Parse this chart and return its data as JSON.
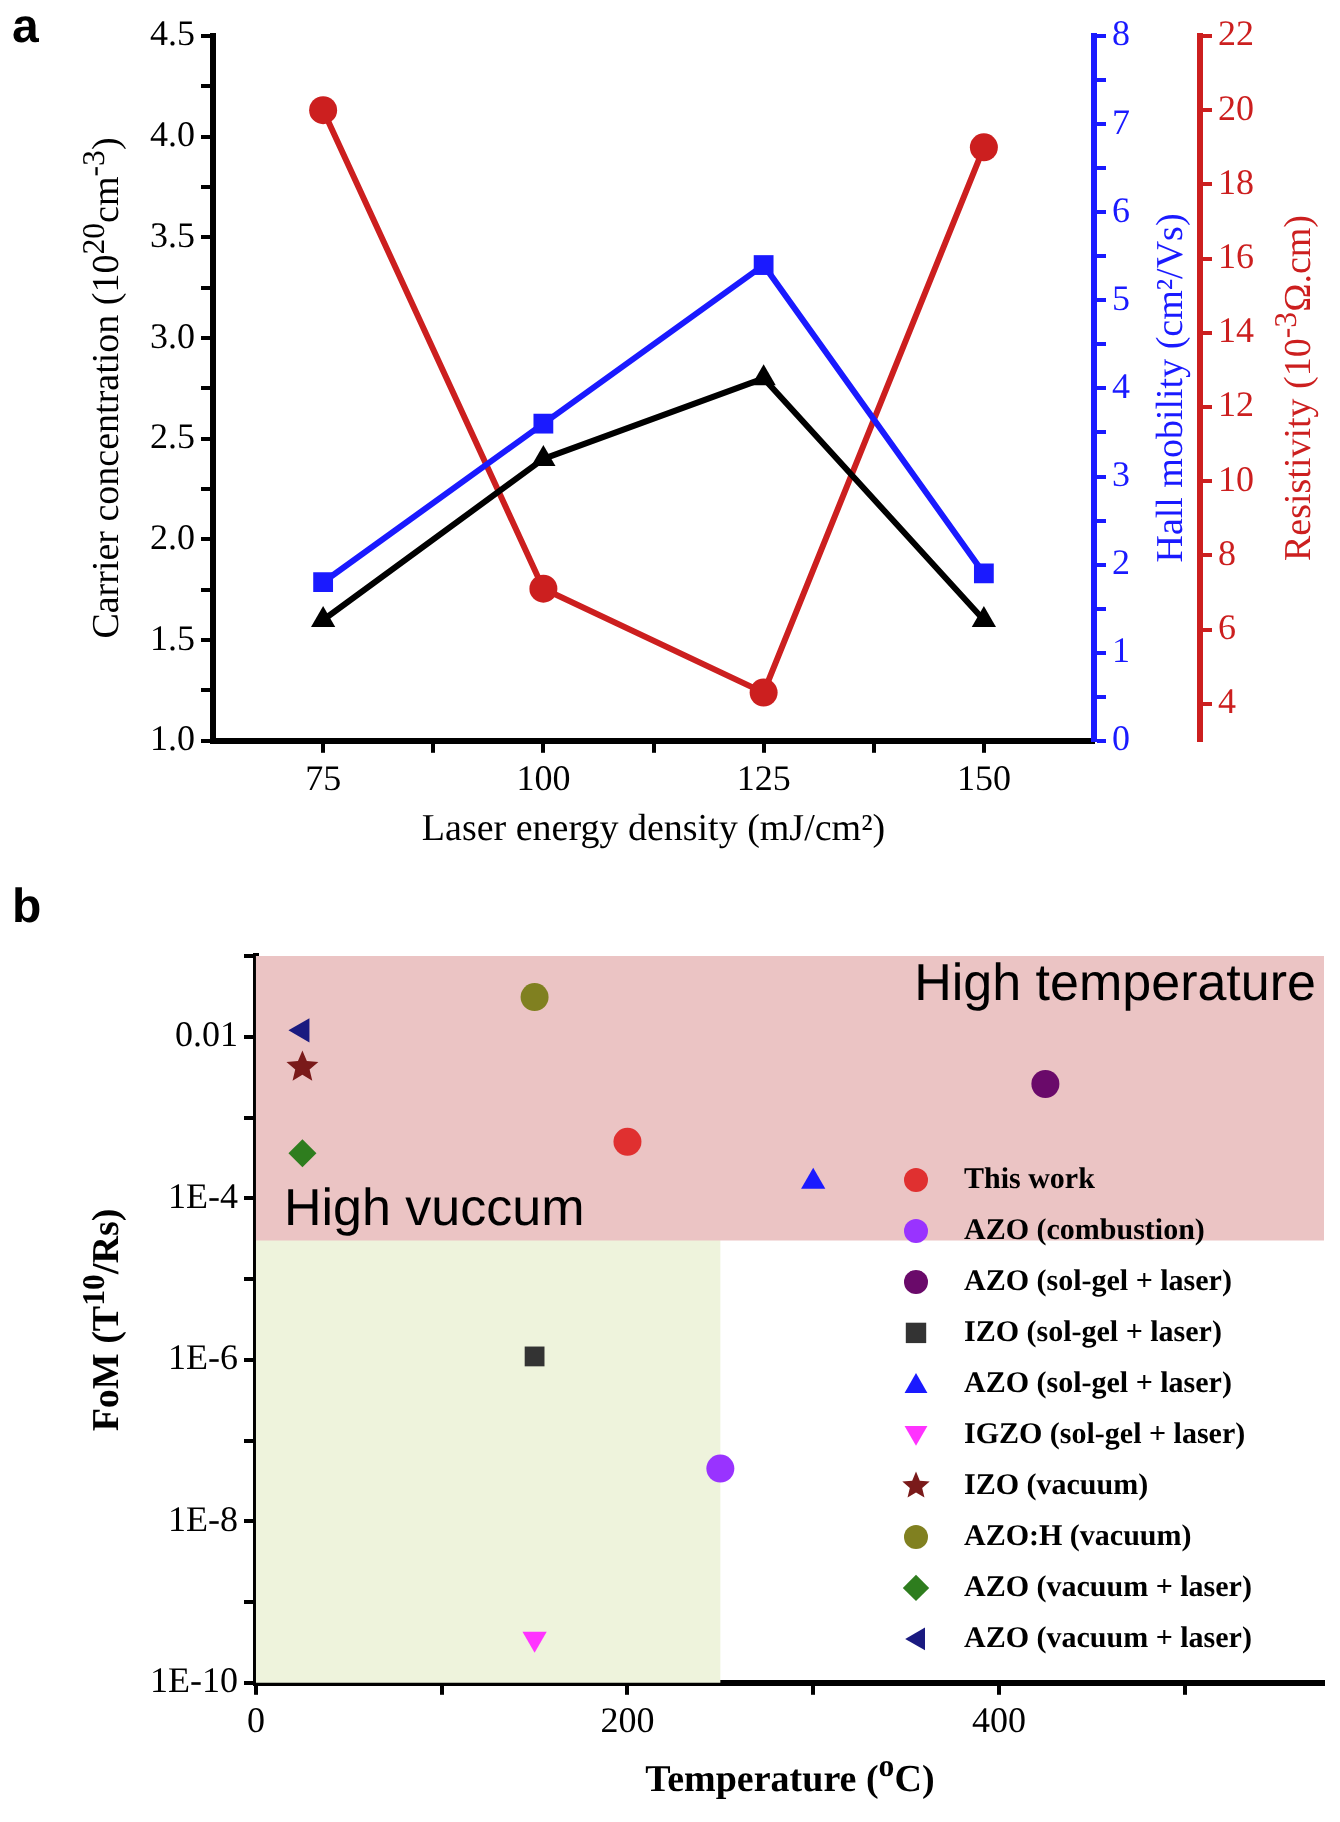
{
  "chart_data": [
    {
      "type": "line",
      "title": "a",
      "xlabel": "Laser energy density (mJ/cm²)",
      "ylabel": "Carrier concentration (10$^{20}$cm$^{-3}$)",
      "y2label": "Hall mobility (cm²/Vs)",
      "y3label": "Resistivity (10$^{-3}$Ω.cm)",
      "x": [
        75,
        100,
        125,
        150
      ],
      "xlim": [
        62.5,
        162.5
      ],
      "xticks": [
        75,
        {
          "value": 87.5,
          "label": null
        },
        100,
        {
          "value": 112.5,
          "label": null
        },
        125,
        {
          "value": 137.5,
          "label": null
        },
        150
      ],
      "ylim": [
        1,
        4.5
      ],
      "yticks": [
        {
          "value": 1,
          "label": "1.0"
        },
        {
          "value": 1.25,
          "label": null
        },
        {
          "value": 1.5,
          "label": "1.5"
        },
        {
          "value": 1.75,
          "label": null
        },
        {
          "value": 2,
          "label": "2.0"
        },
        {
          "value": 2.25,
          "label": null
        },
        {
          "value": 2.5,
          "label": "2.5"
        },
        {
          "value": 2.75,
          "label": null
        },
        {
          "value": 3,
          "label": "3.0"
        },
        {
          "value": 3.25,
          "label": null
        },
        {
          "value": 3.5,
          "label": "3.5"
        },
        {
          "value": 3.75,
          "label": null
        },
        {
          "value": 4,
          "label": "4.0"
        },
        {
          "value": 4.25,
          "label": null
        },
        {
          "value": 4.5,
          "label": "4.5"
        }
      ],
      "y2lim": [
        0,
        8
      ],
      "y2ticks": [
        0,
        {
          "value": 0.5,
          "label": null
        },
        1,
        {
          "value": 1.5,
          "label": null
        },
        2,
        {
          "value": 2.5,
          "label": null
        },
        3,
        {
          "value": 3.5,
          "label": null
        },
        4,
        {
          "value": 4.5,
          "label": null
        },
        5,
        {
          "value": 5.5,
          "label": null
        },
        6,
        {
          "value": 6.5,
          "label": null
        },
        7,
        {
          "value": 7.5,
          "label": null
        },
        8
      ],
      "y3lim": [
        3,
        22
      ],
      "y3ticks": [
        4,
        6,
        8,
        10,
        12,
        14,
        16,
        18,
        20,
        22
      ],
      "series": [
        {
          "color": "#000000",
          "marker": "triangle",
          "values": [
            1.6,
            2.4,
            2.8,
            1.6
          ]
        },
        {
          "color": "#1a1aff",
          "marker": "square",
          "axis": "y2",
          "values": [
            1.8,
            3.6,
            5.4,
            1.9
          ]
        },
        {
          "color": "#cc1f1f",
          "marker": "circle",
          "axis": "y3",
          "values": [
            20.0,
            7.1,
            4.3,
            19.0
          ]
        }
      ]
    },
    {
      "type": "scatter",
      "title": "b",
      "xlabel": "Temperature ($^{o}$C)",
      "ylabel": "FoM (T$^{10}$/Rs)",
      "log": "y",
      "legend": "right",
      "xlim": [
        0,
        575
      ],
      "xticks": [
        0,
        {
          "value": 100,
          "label": null
        },
        200,
        {
          "value": 300,
          "label": null
        },
        400,
        {
          "value": 500,
          "label": null
        }
      ],
      "ylim": [
        1e-10,
        0.1
      ],
      "yticks": [
        {
          "value": 1e-10,
          "label": "1E-10"
        },
        {
          "value": 1e-09,
          "label": null
        },
        {
          "value": 1e-08,
          "label": "1E-8"
        },
        {
          "value": 1e-07,
          "label": null
        },
        {
          "value": 1e-06,
          "label": "1E-6"
        },
        {
          "value": 1e-05,
          "label": null
        },
        {
          "value": 0.0001,
          "label": "1E-4"
        },
        {
          "value": 0.001,
          "label": null
        },
        {
          "value": 0.01,
          "label": "0.01"
        },
        {
          "value": 0.1,
          "label": null
        }
      ],
      "bands": [
        {
          "axis": "x",
          "from": 0,
          "to": 250,
          "label": "High vuccum",
          "color": "#eef3dc"
        },
        {
          "axis": "y",
          "from": 3e-05,
          "to": 0.1,
          "label": "High temperature",
          "color": "#ebc4c4"
        }
      ],
      "series": [
        {
          "name": "This work",
          "color": "#e03030",
          "marker": "circle",
          "x": [
            200
          ],
          "values": [
            0.0005
          ]
        },
        {
          "name": "AZO (combustion)",
          "color": "#9933ff",
          "marker": "circle",
          "x": [
            250
          ],
          "values": [
            4.5e-08
          ]
        },
        {
          "name": "AZO (sol-gel + laser)",
          "color": "#6a0a6a",
          "marker": "circle",
          "x": [
            425
          ],
          "values": [
            0.0026
          ]
        },
        {
          "name": "IZO (sol-gel + laser)",
          "color": "#333333",
          "marker": "square",
          "x": [
            150
          ],
          "values": [
            1.1e-06
          ]
        },
        {
          "name": "AZO (sol-gel + laser)",
          "color": "#1a1aff",
          "marker": "triangle",
          "x": [
            300
          ],
          "values": [
            0.00016
          ]
        },
        {
          "name": "IGZO (sol-gel + laser)",
          "color": "#ff33ff",
          "marker": "triangle-down",
          "x": [
            150
          ],
          "values": [
            3.5e-10
          ]
        },
        {
          "name": "IZO (vacuum)",
          "color": "#7a1a1a",
          "marker": "star",
          "x": [
            25
          ],
          "values": [
            0.0042
          ]
        },
        {
          "name": "AZO:H (vacuum)",
          "color": "#808020",
          "marker": "circle",
          "x": [
            150
          ],
          "values": [
            0.031
          ]
        },
        {
          "name": "AZO (vacuum + laser)",
          "color": "#2e7d1e",
          "marker": "diamond",
          "x": [
            25
          ],
          "values": [
            0.00036
          ]
        },
        {
          "name": "AZO (vacuum + laser)",
          "color": "#1a1a80",
          "marker": "triangle-left",
          "x": [
            25
          ],
          "values": [
            0.012
          ]
        }
      ]
    }
  ]
}
